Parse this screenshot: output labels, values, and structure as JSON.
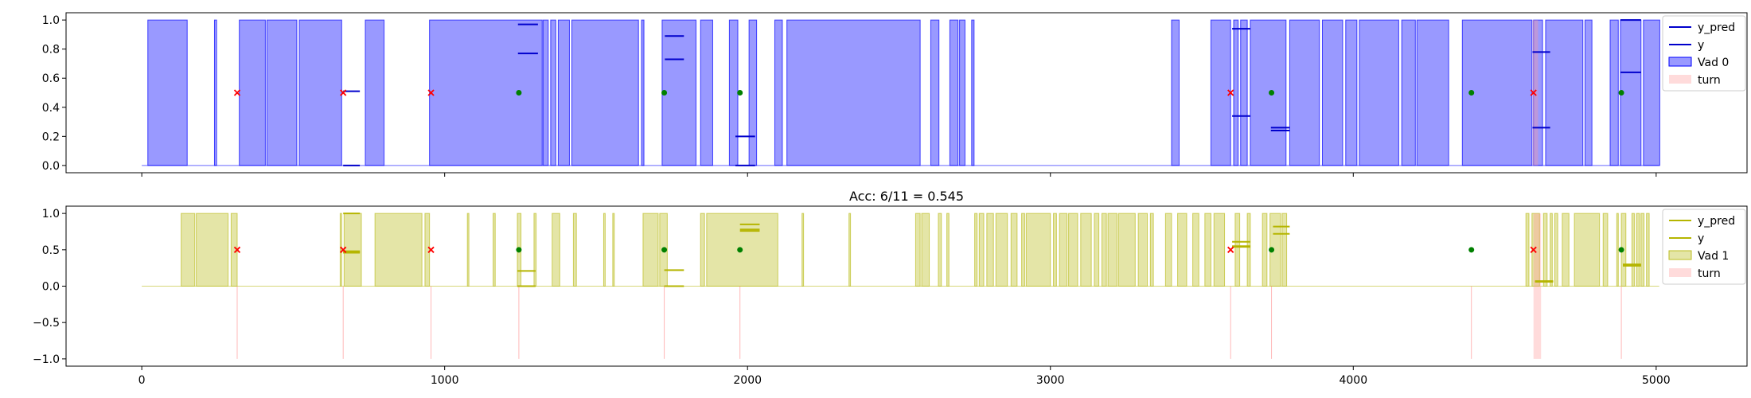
{
  "chart_data": [
    {
      "type": "area",
      "title": "",
      "xlim": [
        -250,
        5300
      ],
      "ylim": [
        -0.05,
        1.05
      ],
      "yticks": [
        0.0,
        0.2,
        0.4,
        0.6,
        0.8,
        1.0
      ],
      "ytick_labels": [
        "0.0",
        "0.2",
        "0.4",
        "0.6",
        "0.8",
        "1.0"
      ],
      "xticks": [
        0,
        1000,
        2000,
        3000,
        4000,
        5000
      ],
      "xtick_labels": [],
      "legend_placement": "top-right",
      "legend": [
        "y_pred",
        "y",
        "Vad 0",
        "turn"
      ],
      "vad_color": "#0000ff",
      "vad_segments": [
        [
          20,
          150
        ],
        [
          240,
          247
        ],
        [
          322,
          408
        ],
        [
          413,
          512
        ],
        [
          520,
          660
        ],
        [
          738,
          800
        ],
        [
          950,
          1322
        ],
        [
          1325,
          1342
        ],
        [
          1350,
          1367
        ],
        [
          1375,
          1412
        ],
        [
          1420,
          1640
        ],
        [
          1650,
          1658
        ],
        [
          1718,
          1830
        ],
        [
          1845,
          1885
        ],
        [
          1940,
          1968
        ],
        [
          2005,
          2030
        ],
        [
          2090,
          2115
        ],
        [
          2130,
          2570
        ],
        [
          2605,
          2632
        ],
        [
          2668,
          2695
        ],
        [
          2700,
          2718
        ],
        [
          2740,
          2748
        ],
        [
          3400,
          3425
        ],
        [
          3530,
          3595
        ],
        [
          3605,
          3620
        ],
        [
          3628,
          3650
        ],
        [
          3660,
          3778
        ],
        [
          3790,
          3888
        ],
        [
          3898,
          3965
        ],
        [
          3975,
          4012
        ],
        [
          4020,
          4150
        ],
        [
          4160,
          4205
        ],
        [
          4210,
          4315
        ],
        [
          4360,
          4590
        ],
        [
          4595,
          4625
        ],
        [
          4635,
          4758
        ],
        [
          4765,
          4788
        ],
        [
          4848,
          4875
        ],
        [
          4882,
          4950
        ],
        [
          4958,
          5012
        ]
      ],
      "turn_segments": [
        [
          4592,
          4610
        ]
      ],
      "y_pred_segments": [
        [
          1242,
          1308,
          0.97
        ],
        [
          1242,
          1308,
          0.77
        ],
        [
          1727,
          1790,
          0.89
        ],
        [
          1727,
          1790,
          0.73
        ],
        [
          3600,
          3660,
          0.94
        ],
        [
          3600,
          3660,
          0.34
        ],
        [
          4592,
          4650,
          0.78
        ],
        [
          4592,
          4650,
          0.26
        ],
        [
          4882,
          4950,
          1.0
        ],
        [
          4882,
          4950,
          0.64
        ]
      ],
      "y_segments": [
        [
          665,
          720,
          0.51
        ],
        [
          665,
          720,
          0.0
        ],
        [
          1960,
          2025,
          0.2
        ],
        [
          1960,
          2025,
          0.0
        ],
        [
          3728,
          3790,
          0.26
        ],
        [
          3728,
          3790,
          0.24
        ]
      ],
      "correct_points": [
        [
          1245,
          0.5
        ],
        [
          1725,
          0.5
        ],
        [
          1975,
          0.5
        ],
        [
          3730,
          0.5
        ],
        [
          4390,
          0.5
        ],
        [
          4885,
          0.5
        ]
      ],
      "wrong_points": [
        [
          315,
          0.5
        ],
        [
          665,
          0.5
        ],
        [
          955,
          0.5
        ],
        [
          3595,
          0.5
        ],
        [
          4595,
          0.5
        ]
      ]
    },
    {
      "type": "area",
      "title": "Acc: 6/11 = 0.545",
      "xlim": [
        -250,
        5300
      ],
      "ylim": [
        -1.1,
        1.1
      ],
      "yticks": [
        -1.0,
        -0.5,
        0.0,
        0.5,
        1.0
      ],
      "ytick_labels": [
        "−1.0",
        "−0.5",
        "0.0",
        "0.5",
        "1.0"
      ],
      "xticks": [
        0,
        1000,
        2000,
        3000,
        4000,
        5000
      ],
      "xtick_labels": [
        "0",
        "1000",
        "2000",
        "3000",
        "4000",
        "5000"
      ],
      "legend_placement": "top-right",
      "legend": [
        "y_pred",
        "y",
        "Vad 1",
        "turn"
      ],
      "vad_color": "#bcbd22",
      "vad_segments": [
        [
          130,
          175
        ],
        [
          180,
          285
        ],
        [
          295,
          315
        ],
        [
          655,
          660
        ],
        [
          668,
          725
        ],
        [
          770,
          925
        ],
        [
          935,
          950
        ],
        [
          1075,
          1080
        ],
        [
          1160,
          1167
        ],
        [
          1240,
          1252
        ],
        [
          1295,
          1302
        ],
        [
          1355,
          1380
        ],
        [
          1425,
          1435
        ],
        [
          1525,
          1530
        ],
        [
          1555,
          1560
        ],
        [
          1655,
          1705
        ],
        [
          1710,
          1735
        ],
        [
          1845,
          1858
        ],
        [
          1865,
          2100
        ],
        [
          2180,
          2185
        ],
        [
          2335,
          2340
        ],
        [
          2555,
          2570
        ],
        [
          2575,
          2600
        ],
        [
          2630,
          2640
        ],
        [
          2658,
          2665
        ],
        [
          2750,
          2758
        ],
        [
          2765,
          2780
        ],
        [
          2790,
          2812
        ],
        [
          2820,
          2858
        ],
        [
          2870,
          2890
        ],
        [
          2905,
          2915
        ],
        [
          2920,
          3000
        ],
        [
          3010,
          3020
        ],
        [
          3030,
          3055
        ],
        [
          3060,
          3090
        ],
        [
          3100,
          3135
        ],
        [
          3145,
          3160
        ],
        [
          3170,
          3185
        ],
        [
          3190,
          3220
        ],
        [
          3225,
          3280
        ],
        [
          3290,
          3320
        ],
        [
          3330,
          3340
        ],
        [
          3380,
          3400
        ],
        [
          3420,
          3450
        ],
        [
          3470,
          3490
        ],
        [
          3510,
          3530
        ],
        [
          3540,
          3575
        ],
        [
          3610,
          3625
        ],
        [
          3650,
          3660
        ],
        [
          3700,
          3715
        ],
        [
          3725,
          3760
        ],
        [
          3765,
          3780
        ],
        [
          4570,
          4580
        ],
        [
          4590,
          4615
        ],
        [
          4628,
          4640
        ],
        [
          4650,
          4657
        ],
        [
          4665,
          4675
        ],
        [
          4690,
          4712
        ],
        [
          4730,
          4813
        ],
        [
          4825,
          4840
        ],
        [
          4870,
          4875
        ],
        [
          4885,
          4900
        ],
        [
          4920,
          4928
        ],
        [
          4935,
          4945
        ],
        [
          4950,
          4960
        ],
        [
          4968,
          4977
        ]
      ],
      "turn_segments": [
        [
          4595,
          4620
        ]
      ],
      "turn_lines": [
        315,
        665,
        955,
        1245,
        1725,
        1975,
        3595,
        3730,
        4390,
        4885
      ],
      "y_pred_segments": [
        [
          665,
          720,
          1.0
        ],
        [
          665,
          720,
          0.47
        ],
        [
          1240,
          1300,
          0.21
        ],
        [
          1725,
          1790,
          0.22
        ],
        [
          1975,
          2040,
          0.85
        ],
        [
          1975,
          2040,
          0.76
        ],
        [
          3600,
          3660,
          0.61
        ],
        [
          3600,
          3660,
          0.54
        ],
        [
          3735,
          3790,
          0.72
        ],
        [
          4600,
          4660,
          0.07
        ],
        [
          4890,
          4950,
          0.3
        ]
      ],
      "y_segments": [
        [
          665,
          720,
          0.46
        ],
        [
          665,
          720,
          0.48
        ],
        [
          1240,
          1300,
          0.0
        ],
        [
          1725,
          1790,
          0.0
        ],
        [
          1975,
          2040,
          0.78
        ],
        [
          3600,
          3660,
          0.55
        ],
        [
          3735,
          3790,
          0.82
        ],
        [
          4600,
          4660,
          0.06
        ],
        [
          4890,
          4950,
          0.28
        ]
      ],
      "correct_points": [
        [
          1245,
          0.5
        ],
        [
          1725,
          0.5
        ],
        [
          1975,
          0.5
        ],
        [
          3730,
          0.5
        ],
        [
          4390,
          0.5
        ],
        [
          4885,
          0.5
        ]
      ],
      "wrong_points": [
        [
          315,
          0.5
        ],
        [
          665,
          0.5
        ],
        [
          955,
          0.5
        ],
        [
          3595,
          0.5
        ],
        [
          4595,
          0.5
        ]
      ]
    }
  ]
}
